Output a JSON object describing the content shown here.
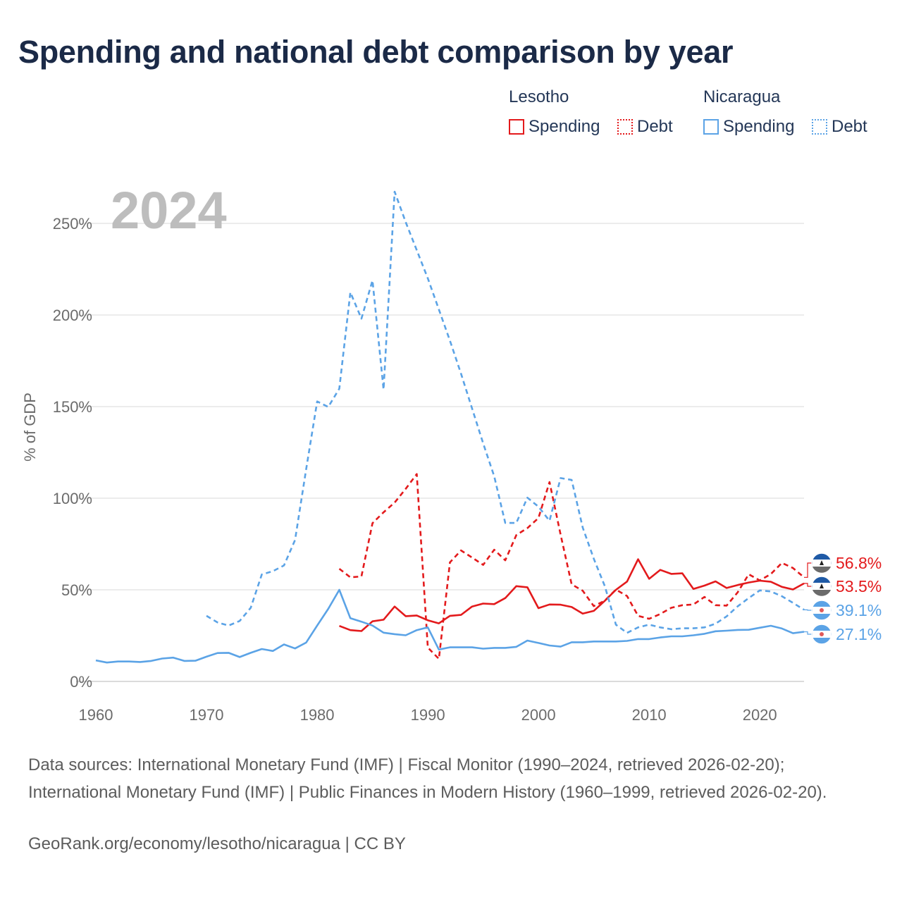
{
  "title": "Spending and national debt comparison by year",
  "legend": {
    "groups": [
      {
        "country": "Lesotho",
        "spending_label": "Spending",
        "debt_label": "Debt",
        "color": "#e31a1c"
      },
      {
        "country": "Nicaragua",
        "spending_label": "Spending",
        "debt_label": "Debt",
        "color": "#5ba3e6"
      }
    ]
  },
  "chart_data": {
    "type": "line",
    "year_label": "2024",
    "ylabel": "% of GDP",
    "xlim": [
      1960,
      2024
    ],
    "ylim": [
      0,
      270
    ],
    "x_ticks": [
      1960,
      1970,
      1980,
      1990,
      2000,
      2010,
      2020
    ],
    "x_tick_labels": [
      "1960",
      "1970",
      "1980",
      "1990",
      "2000",
      "2010",
      "2020"
    ],
    "y_ticks": [
      0,
      50,
      100,
      150,
      200,
      250
    ],
    "y_tick_labels": [
      "0%",
      "50%",
      "100%",
      "150%",
      "200%",
      "250%"
    ],
    "grid": true,
    "series": [
      {
        "name": "Lesotho Spending",
        "country": "Lesotho",
        "kind": "spending",
        "color": "#e31a1c",
        "end_label": "53.5%",
        "x": [
          1982,
          1983,
          1984,
          1985,
          1986,
          1987,
          1988,
          1989,
          1990,
          1991,
          1992,
          1993,
          1994,
          1995,
          1996,
          1997,
          1998,
          1999,
          2000,
          2001,
          2002,
          2003,
          2004,
          2005,
          2006,
          2007,
          2008,
          2009,
          2010,
          2011,
          2012,
          2013,
          2014,
          2015,
          2016,
          2017,
          2018,
          2019,
          2020,
          2021,
          2022,
          2023,
          2024
        ],
        "y": [
          30.3,
          28.0,
          27.5,
          32.8,
          33.7,
          40.9,
          35.6,
          36.0,
          33.4,
          31.7,
          35.8,
          36.3,
          40.9,
          42.5,
          42.2,
          45.5,
          52.0,
          51.4,
          40.0,
          42.0,
          41.9,
          40.6,
          37.0,
          38.5,
          44.0,
          50.0,
          54.5,
          66.7,
          56.0,
          60.9,
          58.7,
          59.0,
          50.5,
          52.3,
          54.6,
          51.0,
          52.6,
          54.0,
          55.0,
          54.4,
          51.6,
          50.2,
          53.5
        ]
      },
      {
        "name": "Lesotho Debt",
        "country": "Lesotho",
        "kind": "debt",
        "color": "#e31a1c",
        "end_label": "56.8%",
        "x": [
          1982,
          1983,
          1984,
          1985,
          1986,
          1987,
          1988,
          1989,
          1990,
          1991,
          1992,
          1993,
          1994,
          1995,
          1996,
          1997,
          1998,
          1999,
          2000,
          2001,
          2002,
          2003,
          2004,
          2005,
          2006,
          2007,
          2008,
          2009,
          2010,
          2011,
          2012,
          2013,
          2014,
          2015,
          2016,
          2017,
          2018,
          2019,
          2020,
          2021,
          2022,
          2023,
          2024
        ],
        "y": [
          61.5,
          56.8,
          57.3,
          86.4,
          92.3,
          97.6,
          105.1,
          113.2,
          18.5,
          12.3,
          65.0,
          71.5,
          67.6,
          63.6,
          71.9,
          66.1,
          79.9,
          83.7,
          89.2,
          108.8,
          80.2,
          53.0,
          49.5,
          41.1,
          44.1,
          50.1,
          46.6,
          35.8,
          34.2,
          36.8,
          40.2,
          41.6,
          42.0,
          46.1,
          41.6,
          41.4,
          48.6,
          58.5,
          55.1,
          58.6,
          64.7,
          61.9,
          56.8
        ]
      },
      {
        "name": "Nicaragua Spending",
        "country": "Nicaragua",
        "kind": "spending",
        "color": "#5ba3e6",
        "end_label": "27.1%",
        "x": [
          1960,
          1961,
          1962,
          1963,
          1964,
          1965,
          1966,
          1967,
          1968,
          1969,
          1970,
          1971,
          1972,
          1973,
          1974,
          1975,
          1976,
          1977,
          1978,
          1979,
          1980,
          1981,
          1982,
          1983,
          1984,
          1985,
          1986,
          1987,
          1988,
          1989,
          1990,
          1991,
          1992,
          1993,
          1994,
          1995,
          1996,
          1997,
          1998,
          1999,
          2000,
          2001,
          2002,
          2003,
          2004,
          2005,
          2006,
          2007,
          2008,
          2009,
          2010,
          2011,
          2012,
          2013,
          2014,
          2015,
          2016,
          2017,
          2018,
          2019,
          2020,
          2021,
          2022,
          2023,
          2024
        ],
        "y": [
          11.5,
          10.3,
          10.9,
          10.9,
          10.6,
          11.2,
          12.5,
          13.0,
          11.2,
          11.3,
          13.5,
          15.5,
          15.6,
          13.3,
          15.6,
          17.7,
          16.6,
          20.2,
          18.0,
          21.2,
          30.5,
          39.6,
          50.0,
          34.5,
          32.6,
          30.5,
          26.6,
          25.8,
          25.2,
          28.0,
          29.5,
          17.4,
          18.6,
          18.6,
          18.6,
          17.9,
          18.3,
          18.3,
          18.9,
          22.3,
          21.0,
          19.6,
          19.0,
          21.4,
          21.4,
          21.8,
          21.8,
          21.8,
          22.1,
          23.1,
          23.1,
          24.0,
          24.6,
          24.6,
          25.2,
          26.0,
          27.4,
          27.7,
          28.1,
          28.2,
          29.3,
          30.4,
          28.9,
          26.3,
          27.1
        ]
      },
      {
        "name": "Nicaragua Debt",
        "country": "Nicaragua",
        "kind": "debt",
        "color": "#5ba3e6",
        "end_label": "39.1%",
        "x": [
          1970,
          1971,
          1972,
          1973,
          1974,
          1975,
          1976,
          1977,
          1978,
          1979,
          1980,
          1981,
          1982,
          1983,
          1984,
          1985,
          1986,
          1987,
          1988,
          1989,
          1990,
          1991,
          1992,
          1993,
          1994,
          1995,
          1996,
          1997,
          1998,
          1999,
          2000,
          2001,
          2002,
          2003,
          2004,
          2005,
          2006,
          2007,
          2008,
          2009,
          2010,
          2011,
          2012,
          2013,
          2014,
          2015,
          2016,
          2017,
          2018,
          2019,
          2020,
          2021,
          2022,
          2023,
          2024
        ],
        "y": [
          35.8,
          32.2,
          30.5,
          33.0,
          40.2,
          58.4,
          60.2,
          63.3,
          77.2,
          115.7,
          152.8,
          149.8,
          159.8,
          212.4,
          198.0,
          218.9,
          159.3,
          267.3,
          250.7,
          235.4,
          220.0,
          203.0,
          186.0,
          168.0,
          149.0,
          130.0,
          112.0,
          86.5,
          86.5,
          100.3,
          95.4,
          87.7,
          111.0,
          110.0,
          84.0,
          67.0,
          52.0,
          31.0,
          26.5,
          29.5,
          31.0,
          29.5,
          28.5,
          29.0,
          29.0,
          29.5,
          31.5,
          35.5,
          41.0,
          45.5,
          49.7,
          49.1,
          46.5,
          42.9,
          39.1
        ]
      }
    ]
  },
  "sources_text": "Data sources: International Monetary Fund (IMF) | Fiscal Monitor (1990–2024, retrieved 2026-02-20); International Monetary Fund (IMF) | Public Finances in Modern History (1960–1999, retrieved 2026-02-20).",
  "credit_text": "GeoRank.org/economy/lesotho/nicaragua | CC BY"
}
